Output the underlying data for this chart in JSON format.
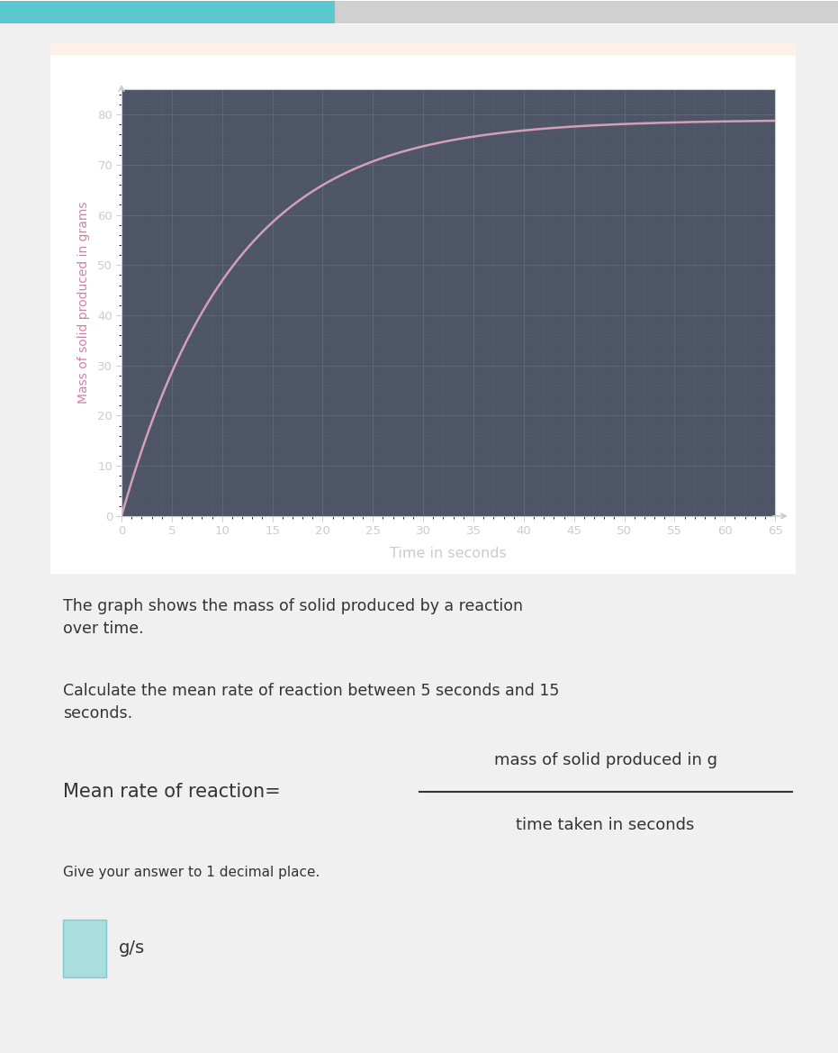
{
  "page_bg": "#f0f0f0",
  "white_area_bg": "#ffffff",
  "chart_bg_color": "#4d5566",
  "chart_grid_color": "#6a7585",
  "curve_color": "#d4a0b8",
  "ylabel": "Mass of solid produced in grams",
  "xlabel": "Time in seconds",
  "ylabel_color": "#d080a8",
  "xlabel_color": "#cccccc",
  "tick_color": "#cccccc",
  "xlim": [
    0,
    65
  ],
  "ylim": [
    0,
    85
  ],
  "xticks": [
    0,
    5,
    10,
    15,
    20,
    25,
    30,
    35,
    40,
    45,
    50,
    55,
    60,
    65
  ],
  "yticks": [
    0,
    10,
    20,
    30,
    40,
    50,
    60,
    70,
    80
  ],
  "asymptote": 79,
  "k": 0.09,
  "text1": "The graph shows the mass of solid produced by a reaction\nover time.",
  "text2": "Calculate the mean rate of reaction between 5 seconds and 15\nseconds.",
  "text3_left": "Mean rate of reaction=",
  "text3_numerator": "mass of solid produced in g",
  "text3_denominator": "time taken in seconds",
  "text4": "Give your answer to 1 decimal place.",
  "text5": "g/s",
  "box_color": "#a8dede",
  "text_color": "#333333",
  "top_bar_cyan": "#5bc8d0",
  "top_bar_gray": "#d0d0d0",
  "peach_strip": "#fdf0e8"
}
